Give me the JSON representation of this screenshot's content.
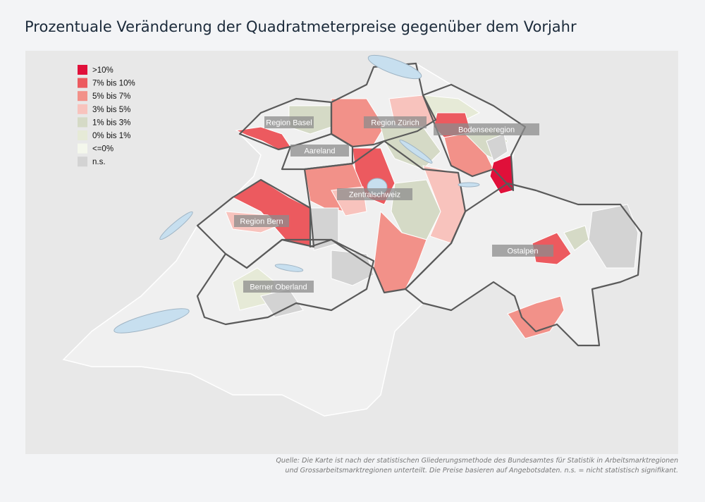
{
  "header": {
    "title": "Prozentuale Veränderung der Quadratmeterpreise gegenüber dem Vorjahr"
  },
  "legend": {
    "items": [
      {
        "label": ">10%",
        "color": "#e0103a"
      },
      {
        "label": "7% bis 10%",
        "color": "#ec5a5f"
      },
      {
        "label": "5% bis 7%",
        "color": "#f29189"
      },
      {
        "label": "3% bis 5%",
        "color": "#f8c3bd"
      },
      {
        "label": "1% bis 3%",
        "color": "#d5dac6"
      },
      {
        "label": "0% bis 1%",
        "color": "#e6ead7"
      },
      {
        "label": "<=0%",
        "color": "#f4f7ec"
      },
      {
        "label": "n.s.",
        "color": "#d3d3d3"
      }
    ]
  },
  "regions": [
    "Region Basel",
    "Region Zürich",
    "Bodenseeregion",
    "Aareland",
    "Zentralschweiz",
    "Region Bern",
    "Ostalpen",
    "Berner Oberland"
  ],
  "footer": {
    "source": [
      "Quelle: Die Karte ist nach der statistischen Gliederungsmethode des Bundesamtes für Statistik in Arbeitsmarktregionen",
      "und Grossarbeitsmarktregionen unterteilt. Die Preise basieren auf Angebotsdaten. n.s. = nicht statistisch signifikant."
    ]
  }
}
